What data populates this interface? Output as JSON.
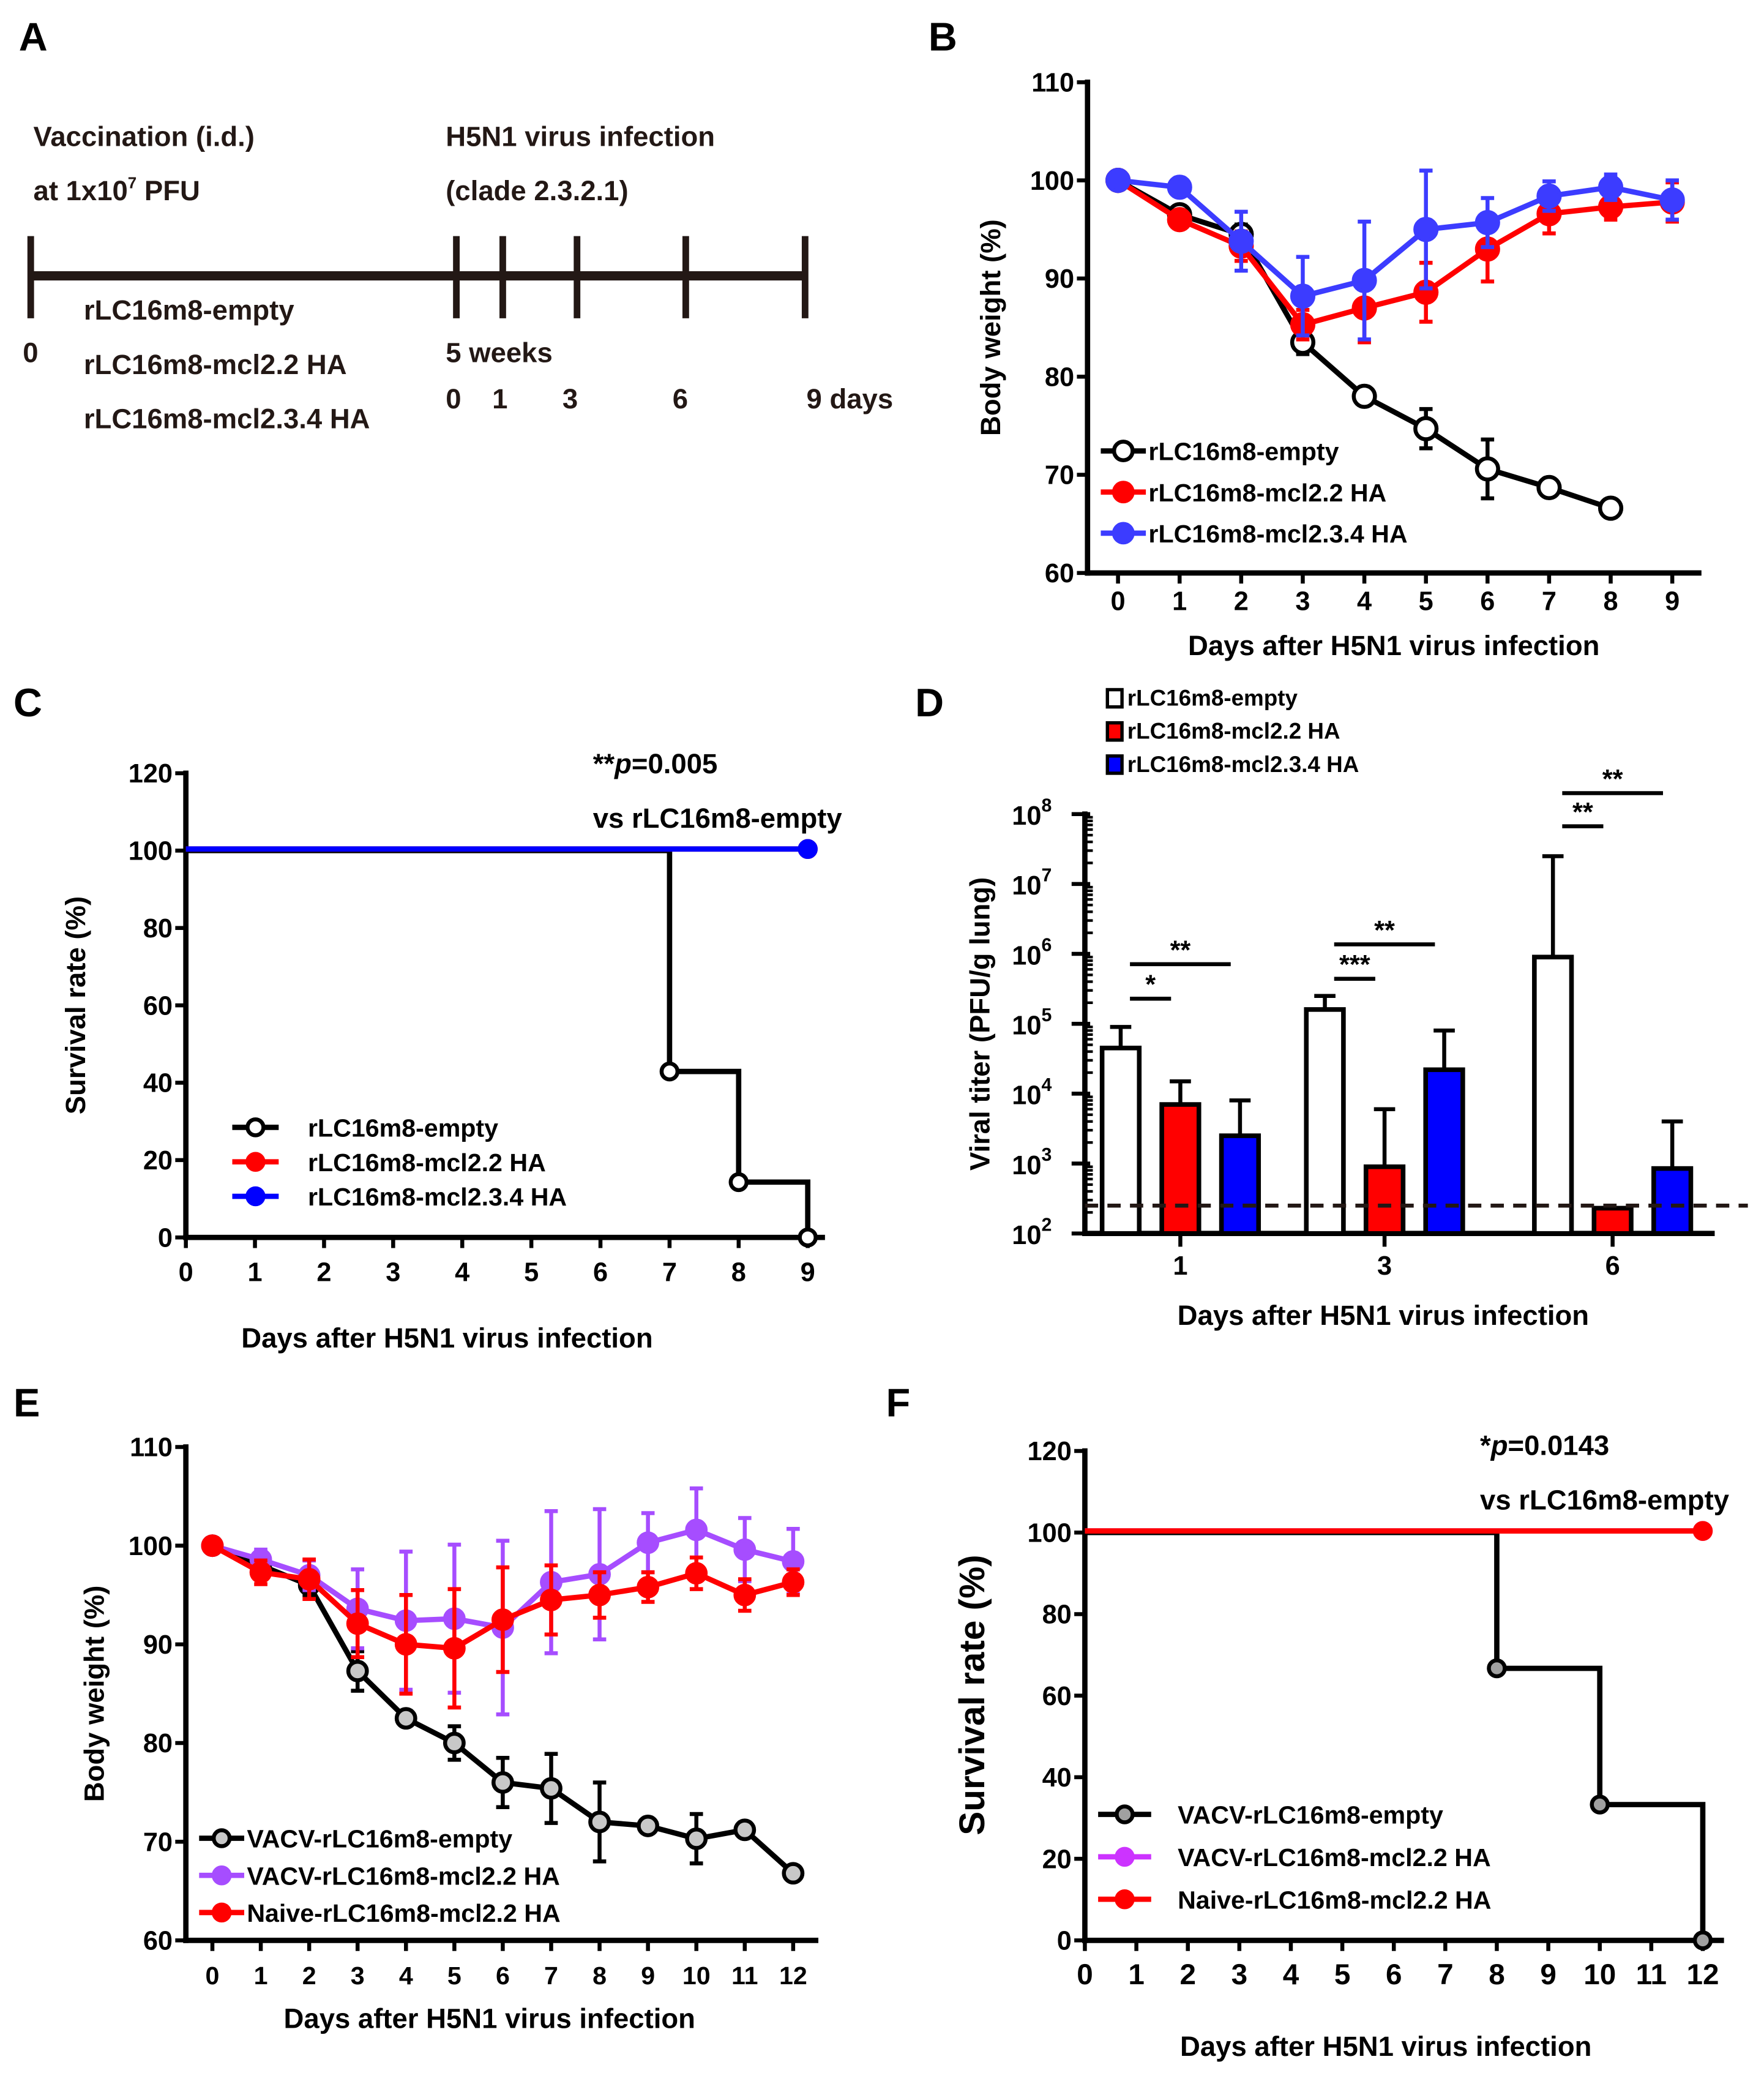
{
  "panels": [
    "A",
    "B",
    "C",
    "D",
    "E",
    "F"
  ],
  "timeline": {
    "vaccination_line1": "Vaccination (i.d.)",
    "vaccination_line2_prefix": "at 1x10",
    "vaccination_line2_sup": "7",
    "vaccination_line2_suffix": " PFU",
    "infection_line1": "H5N1 virus infection",
    "infection_line2": "(clade 2.3.2.1)",
    "groups": [
      "rLC16m8-empty",
      "rLC16m8-mcl2.2 HA",
      "rLC16m8-mcl2.3.4 HA"
    ],
    "start_label": "0",
    "interval_label": "5 weeks",
    "day_labels": [
      "0",
      "1",
      "3",
      "6"
    ],
    "end_label": "9 days",
    "line_color": "#231815"
  },
  "chart_data": [
    {
      "panel": "B",
      "type": "line",
      "xlabel": "Days after H5N1 virus infection",
      "ylabel": "Body weight (%)",
      "xlim": [
        0,
        9
      ],
      "ylim": [
        60,
        110
      ],
      "xticks": [
        0,
        1,
        2,
        3,
        4,
        5,
        6,
        7,
        8,
        9
      ],
      "xtick_labels": [
        "0",
        "1",
        "2",
        "3",
        "4",
        "5",
        "6",
        "7",
        "8",
        "9"
      ],
      "yticks": [
        60,
        70,
        80,
        90,
        100,
        110
      ],
      "ytick_labels": [
        "60",
        "70",
        "80",
        "90",
        "100",
        "110"
      ],
      "legend_placement": "bottom-left",
      "series": [
        {
          "name": "rLC16m8-empty",
          "color": "#000000",
          "marker": "open-circle",
          "values": [
            100,
            96.5,
            94.5,
            83.5,
            78,
            74.7,
            70.6,
            68.7,
            66.6
          ],
          "errors": [
            0,
            0.5,
            1,
            1.2,
            0.8,
            2,
            3,
            0.5,
            0.5
          ]
        },
        {
          "name": "rLC16m8-mcl2.2 HA",
          "color": "#ff0000",
          "marker": "filled-circle",
          "values": [
            100,
            96,
            93.3,
            85.3,
            87,
            88.6,
            93,
            96.6,
            97.3,
            97.8
          ],
          "errors": [
            0,
            0.5,
            1.5,
            1.5,
            3.5,
            3,
            3.3,
            2,
            1.3,
            2
          ]
        },
        {
          "name": "rLC16m8-mcl2.3.4 HA",
          "color": "#3c3cff",
          "marker": "filled-circle",
          "values": [
            100,
            99.3,
            93.8,
            88.2,
            89.8,
            95,
            95.7,
            98.4,
            99.3,
            98
          ],
          "errors": [
            0,
            0.5,
            3,
            4,
            6,
            6,
            2.5,
            1.5,
            1.3,
            2
          ]
        }
      ]
    },
    {
      "panel": "C",
      "type": "line",
      "subtype": "survival-step",
      "xlabel": "Days after H5N1 virus infection",
      "ylabel": "Survival rate (%)",
      "xlim": [
        0,
        9
      ],
      "ylim": [
        0,
        120
      ],
      "xticks": [
        0,
        1,
        2,
        3,
        4,
        5,
        6,
        7,
        8,
        9
      ],
      "xtick_labels": [
        "0",
        "1",
        "2",
        "3",
        "4",
        "5",
        "6",
        "7",
        "8",
        "9"
      ],
      "yticks": [
        0,
        20,
        40,
        60,
        80,
        100,
        120
      ],
      "ytick_labels": [
        "0",
        "20",
        "40",
        "60",
        "80",
        "100",
        "120"
      ],
      "annotation": {
        "stars": "**",
        "p": "p",
        "value": "=0.005",
        "line2": "vs rLC16m8-empty"
      },
      "legend_placement": "bottom-left",
      "series": [
        {
          "name": "rLC16m8-empty",
          "color": "#000000",
          "marker": "open-circle",
          "x": [
            0,
            7,
            8,
            9
          ],
          "y": [
            100,
            42.9,
            14.3,
            0
          ]
        },
        {
          "name": "rLC16m8-mcl2.2 HA",
          "color": "#ff0000",
          "marker": "filled-circle",
          "x": [
            0,
            9
          ],
          "y": [
            100,
            100
          ]
        },
        {
          "name": "rLC16m8-mcl2.3.4 HA",
          "color": "#0000ff",
          "marker": "filled-circle",
          "x": [
            0,
            9
          ],
          "y": [
            100,
            100
          ]
        }
      ]
    },
    {
      "panel": "D",
      "type": "bar",
      "yscale": "log",
      "xlabel": "Days after H5N1 virus infection",
      "ylabel": "Viral titer (PFU/g lung)",
      "categories": [
        "1",
        "3",
        "6"
      ],
      "ylim": [
        100,
        100000000
      ],
      "ytick_base": "10",
      "ytick_exponents": [
        "2",
        "3",
        "4",
        "5",
        "6",
        "7",
        "8"
      ],
      "detection_limit": 250,
      "legend_placement": "top-left",
      "series": [
        {
          "name": "rLC16m8-empty",
          "color": "#ffffff",
          "values": [
            45000,
            160000,
            900000
          ],
          "error_top": [
            90000,
            250000,
            25000000
          ]
        },
        {
          "name": "rLC16m8-mcl2.2 HA",
          "color": "#ff0000",
          "values": [
            7000,
            900,
            230
          ],
          "error_top": [
            15000,
            6000,
            230
          ]
        },
        {
          "name": "rLC16m8-mcl2.3.4 HA",
          "color": "#0000ff",
          "values": [
            2500,
            22000,
            850
          ],
          "error_top": [
            8000,
            80000,
            4000
          ]
        }
      ],
      "comparisons": [
        {
          "category": 0,
          "from": 0,
          "to": 1,
          "label": "*"
        },
        {
          "category": 0,
          "from": 0,
          "to": 2,
          "label": "**"
        },
        {
          "category": 1,
          "from": 0,
          "to": 1,
          "label": "***"
        },
        {
          "category": 1,
          "from": 0,
          "to": 2,
          "label": "**"
        },
        {
          "category": 2,
          "from": 0,
          "to": 1,
          "label": "**"
        },
        {
          "category": 2,
          "from": 0,
          "to": 2,
          "label": "**"
        }
      ]
    },
    {
      "panel": "E",
      "type": "line",
      "xlabel": "Days after H5N1 virus infection",
      "ylabel": "Body weight (%)",
      "xlim": [
        0,
        12
      ],
      "ylim": [
        60,
        110
      ],
      "xticks": [
        0,
        1,
        2,
        3,
        4,
        5,
        6,
        7,
        8,
        9,
        10,
        11,
        12
      ],
      "xtick_labels": [
        "0",
        "1",
        "2",
        "3",
        "4",
        "5",
        "6",
        "7",
        "8",
        "9",
        "10",
        "11",
        "12"
      ],
      "yticks": [
        60,
        70,
        80,
        90,
        100,
        110
      ],
      "ytick_labels": [
        "60",
        "70",
        "80",
        "90",
        "100",
        "110"
      ],
      "legend_placement": "bottom-left",
      "series": [
        {
          "name": "VACV-rLC16m8-empty",
          "color": "#000000",
          "marker_fill": "#c8c8c8",
          "marker": "gray-circle",
          "values": [
            100,
            98,
            96,
            87.3,
            82.5,
            80,
            76,
            75.4,
            72,
            71.6,
            70.3,
            71.2,
            66.8
          ],
          "errors": [
            0,
            0.5,
            1,
            2,
            0.7,
            1.7,
            2.5,
            3.5,
            4,
            0.5,
            2.5,
            0.5,
            0.3
          ]
        },
        {
          "name": "VACV-rLC16m8-mcl2.2 HA",
          "color": "#a64dff",
          "marker": "filled-circle",
          "values": [
            100,
            98.6,
            97,
            93.6,
            92.4,
            92.6,
            91.7,
            96.3,
            97.1,
            100.3,
            101.6,
            99.6,
            98.4
          ],
          "errors": [
            0,
            1,
            1.5,
            4,
            7,
            7.5,
            8.8,
            7.2,
            6.6,
            3,
            4.2,
            3.2,
            3.3
          ]
        },
        {
          "name": "Naive-rLC16m8-mcl2.2 HA",
          "color": "#ff0000",
          "marker": "filled-circle",
          "values": [
            100,
            97.3,
            96.6,
            92.1,
            90,
            89.6,
            92.5,
            94.5,
            95,
            95.8,
            97.2,
            95,
            96.3
          ],
          "errors": [
            0,
            1.2,
            2,
            3.4,
            5,
            6,
            5.3,
            3.5,
            2.3,
            1.5,
            1.6,
            1.6,
            1.3
          ]
        }
      ]
    },
    {
      "panel": "F",
      "type": "line",
      "subtype": "survival-step",
      "xlabel": "Days after H5N1 virus infection",
      "ylabel": "Survival rate (%)",
      "xlim": [
        0,
        12
      ],
      "ylim": [
        0,
        120
      ],
      "xticks": [
        0,
        1,
        2,
        3,
        4,
        5,
        6,
        7,
        8,
        9,
        10,
        11,
        12
      ],
      "xtick_labels": [
        "0",
        "1",
        "2",
        "3",
        "4",
        "5",
        "6",
        "7",
        "8",
        "9",
        "10",
        "11",
        "12"
      ],
      "yticks": [
        0,
        20,
        40,
        60,
        80,
        100,
        120
      ],
      "ytick_labels": [
        "0",
        "20",
        "40",
        "60",
        "80",
        "100",
        "120"
      ],
      "annotation": {
        "stars": "*",
        "p": "p",
        "value": "=0.0143",
        "line2": "vs rLC16m8-empty"
      },
      "legend_placement": "bottom-left",
      "series": [
        {
          "name": "VACV-rLC16m8-empty",
          "color": "#000000",
          "marker_fill": "#a0a0a0",
          "marker": "gray-circle",
          "x": [
            0,
            8,
            10,
            12
          ],
          "y": [
            100,
            66.7,
            33.3,
            0
          ]
        },
        {
          "name": "VACV-rLC16m8-mcl2.2 HA",
          "color": "#cc33ff",
          "marker": "filled-circle",
          "x": [
            0,
            12
          ],
          "y": [
            100,
            100
          ]
        },
        {
          "name": "Naive-rLC16m8-mcl2.2 HA",
          "color": "#ff0000",
          "marker": "filled-circle",
          "x": [
            0,
            12
          ],
          "y": [
            100,
            100
          ]
        }
      ]
    }
  ]
}
